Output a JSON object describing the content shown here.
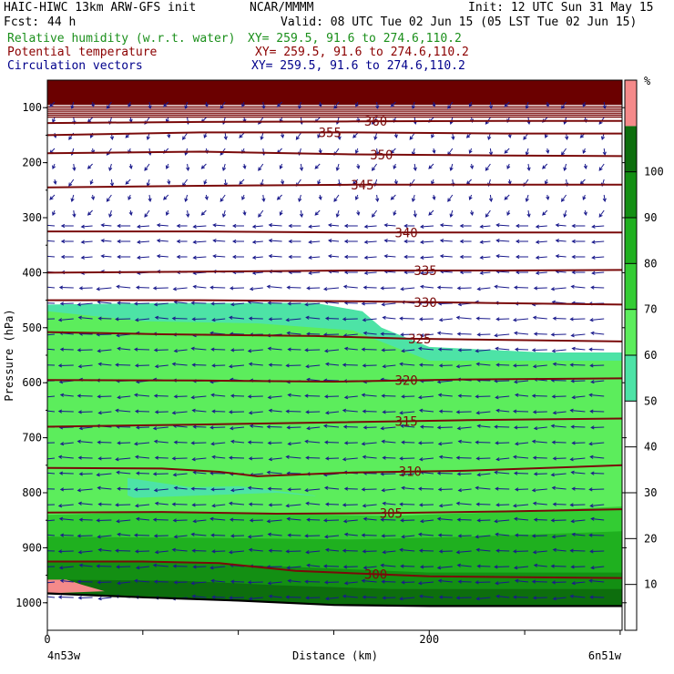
{
  "header": {
    "model": "HAIC-HIWC 13km ARW-GFS init",
    "org": "NCAR/MMMM",
    "init": "Init: 12 UTC Sun 31 May 15",
    "fcst_label": "Fcst:",
    "fcst_value": "44 h",
    "valid": "Valid: 08 UTC Tue 02 Jun 15 (05 LST Tue 02 Jun 15)",
    "fields": [
      {
        "label": "Relative humidity (w.r.t. water)",
        "xy": "XY= 259.5, 91.6 to 274.6,110.2"
      },
      {
        "label": "Potential temperature",
        "xy": "XY= 259.5, 91.6 to 274.6,110.2"
      },
      {
        "label": "Circulation vectors",
        "xy": "XY= 259.5, 91.6 to 274.6,110.2"
      }
    ]
  },
  "colors": {
    "rh_text": "#1a8f1a",
    "theta_text": "#8b0000",
    "vector_text": "#00008b",
    "theta_line": "#7a0a0a",
    "vector": "#1a1a8c",
    "rh_50": "#4de3a6",
    "rh_60": "#5ced5c",
    "rh_70": "#33cc33",
    "rh_80": "#1fb01f",
    "rh_90": "#138f13",
    "rh_100": "#0d6e0d",
    "rh_top": "#f58a8a",
    "stratos": "#6b0000"
  },
  "chart_data": {
    "type": "heatmap",
    "xlabel": "Distance (km)",
    "ylabel": "Pressure (hPa)",
    "x_ticks": [
      0,
      200
    ],
    "xlim": [
      0,
      301
    ],
    "y_ticks": [
      100,
      200,
      300,
      400,
      500,
      600,
      700,
      800,
      900,
      1000
    ],
    "ylim": [
      1050,
      50
    ],
    "x_end_labels": {
      "left": "4n53w",
      "right": "6n51w"
    },
    "colorbar": {
      "unit": "%",
      "ticks": [
        10,
        20,
        30,
        40,
        50,
        60,
        70,
        80,
        90,
        100
      ],
      "levels": [
        {
          "from": 50,
          "to": 60,
          "color": "#4de3a6"
        },
        {
          "from": 60,
          "to": 70,
          "color": "#5ced5c"
        },
        {
          "from": 70,
          "to": 80,
          "color": "#33cc33"
        },
        {
          "from": 80,
          "to": 90,
          "color": "#1fb01f"
        },
        {
          "from": 90,
          "to": 100,
          "color": "#138f13"
        },
        {
          "from": 100,
          "to": 110,
          "color": "#0d6e0d"
        },
        {
          "from": 110,
          "to": 120,
          "color": "#f58a8a"
        }
      ]
    },
    "rh_regions": [
      {
        "level": 50,
        "color": "#4de3a6",
        "pts": [
          [
            0,
            458
          ],
          [
            60,
            455
          ],
          [
            140,
            455
          ],
          [
            165,
            470
          ],
          [
            175,
            500
          ],
          [
            200,
            535
          ],
          [
            260,
            545
          ],
          [
            301,
            545
          ],
          [
            301,
            1005
          ],
          [
            0,
            1005
          ]
        ]
      },
      {
        "level": 60,
        "color": "#5ced5c",
        "pts": [
          [
            0,
            470
          ],
          [
            50,
            488
          ],
          [
            110,
            492
          ],
          [
            160,
            505
          ],
          [
            200,
            560
          ],
          [
            301,
            560
          ],
          [
            301,
            1005
          ],
          [
            0,
            1005
          ]
        ]
      },
      {
        "level": 50,
        "color": "#4de3a6",
        "pts": [
          [
            42,
            773
          ],
          [
            75,
            790
          ],
          [
            100,
            788
          ],
          [
            140,
            805
          ],
          [
            150,
            830
          ],
          [
            120,
            835
          ],
          [
            60,
            828
          ],
          [
            42,
            805
          ]
        ]
      },
      {
        "level": 60,
        "color": "#5ced5c",
        "pts": [
          [
            0,
            812
          ],
          [
            40,
            810
          ],
          [
            80,
            805
          ],
          [
            120,
            800
          ],
          [
            160,
            812
          ],
          [
            200,
            815
          ],
          [
            250,
            800
          ],
          [
            301,
            780
          ],
          [
            301,
            1005
          ],
          [
            0,
            1005
          ]
        ]
      },
      {
        "level": 70,
        "color": "#33cc33",
        "pts": [
          [
            0,
            840
          ],
          [
            60,
            835
          ],
          [
            120,
            838
          ],
          [
            180,
            842
          ],
          [
            240,
            835
          ],
          [
            301,
            825
          ],
          [
            301,
            1005
          ],
          [
            0,
            1005
          ]
        ]
      },
      {
        "level": 80,
        "color": "#1fb01f",
        "pts": [
          [
            0,
            880
          ],
          [
            80,
            882
          ],
          [
            160,
            885
          ],
          [
            220,
            880
          ],
          [
            301,
            870
          ],
          [
            301,
            1005
          ],
          [
            0,
            1005
          ]
        ]
      },
      {
        "level": 90,
        "color": "#138f13",
        "pts": [
          [
            0,
            925
          ],
          [
            70,
            927
          ],
          [
            130,
            935
          ],
          [
            200,
            945
          ],
          [
            301,
            945
          ],
          [
            301,
            1005
          ],
          [
            0,
            1005
          ]
        ]
      },
      {
        "level": 100,
        "color": "#0d6e0d",
        "pts": [
          [
            0,
            958
          ],
          [
            70,
            960
          ],
          [
            120,
            968
          ],
          [
            180,
            975
          ],
          [
            301,
            975
          ],
          [
            301,
            1005
          ],
          [
            0,
            1005
          ]
        ]
      },
      {
        "level": 110,
        "color": "#f58a8a",
        "pts": [
          [
            0,
            958
          ],
          [
            10,
            958
          ],
          [
            18,
            967
          ],
          [
            30,
            979
          ],
          [
            0,
            983
          ]
        ]
      }
    ],
    "stratosphere_band": {
      "from_hPa": 50,
      "to_hPa": 95
    },
    "surface_line": [
      [
        0,
        983
      ],
      [
        50,
        990
      ],
      [
        100,
        996
      ],
      [
        150,
        1004
      ],
      [
        200,
        1006
      ],
      [
        301,
        1006
      ]
    ],
    "theta_contours": [
      {
        "value": 300,
        "label_x": 172,
        "points": [
          [
            0,
            925
          ],
          [
            50,
            925
          ],
          [
            90,
            928
          ],
          [
            130,
            942
          ],
          [
            200,
            952
          ],
          [
            301,
            955
          ]
        ]
      },
      {
        "value": 305,
        "label_x": 180,
        "points": [
          [
            0,
            836
          ],
          [
            60,
            835
          ],
          [
            120,
            838
          ],
          [
            180,
            837
          ],
          [
            240,
            834
          ],
          [
            301,
            830
          ]
        ]
      },
      {
        "value": 310,
        "label_x": 190,
        "points": [
          [
            0,
            755
          ],
          [
            60,
            756
          ],
          [
            90,
            762
          ],
          [
            110,
            770
          ],
          [
            160,
            763
          ],
          [
            220,
            760
          ],
          [
            301,
            750
          ]
        ]
      },
      {
        "value": 315,
        "label_x": 188,
        "points": [
          [
            0,
            680
          ],
          [
            80,
            676
          ],
          [
            150,
            672
          ],
          [
            220,
            668
          ],
          [
            301,
            665
          ]
        ]
      },
      {
        "value": 320,
        "label_x": 188,
        "points": [
          [
            0,
            595
          ],
          [
            80,
            596
          ],
          [
            150,
            598
          ],
          [
            220,
            594
          ],
          [
            301,
            592
          ]
        ]
      },
      {
        "value": 325,
        "label_x": 195,
        "points": [
          [
            0,
            508
          ],
          [
            60,
            512
          ],
          [
            140,
            515
          ],
          [
            190,
            520
          ],
          [
            260,
            523
          ],
          [
            301,
            525
          ]
        ]
      },
      {
        "value": 330,
        "label_x": 198,
        "points": [
          [
            0,
            450
          ],
          [
            80,
            450
          ],
          [
            160,
            452
          ],
          [
            230,
            455
          ],
          [
            301,
            458
          ]
        ]
      },
      {
        "value": 335,
        "label_x": 198,
        "points": [
          [
            0,
            400
          ],
          [
            80,
            398
          ],
          [
            160,
            396
          ],
          [
            240,
            396
          ],
          [
            301,
            395
          ]
        ]
      },
      {
        "value": 340,
        "label_x": 188,
        "points": [
          [
            0,
            325
          ],
          [
            80,
            325
          ],
          [
            160,
            327
          ],
          [
            240,
            327
          ],
          [
            301,
            327
          ]
        ]
      },
      {
        "value": 345,
        "label_x": 165,
        "points": [
          [
            0,
            245
          ],
          [
            80,
            242
          ],
          [
            160,
            240
          ],
          [
            240,
            240
          ],
          [
            301,
            240
          ]
        ]
      },
      {
        "value": 350,
        "label_x": 175,
        "points": [
          [
            0,
            183
          ],
          [
            80,
            180
          ],
          [
            160,
            185
          ],
          [
            240,
            187
          ],
          [
            301,
            188
          ]
        ]
      },
      {
        "value": 355,
        "label_x": 148,
        "points": [
          [
            0,
            150
          ],
          [
            80,
            145
          ],
          [
            160,
            145
          ],
          [
            240,
            147
          ],
          [
            301,
            147
          ]
        ]
      },
      {
        "value": 360,
        "label_x": 172,
        "points": [
          [
            0,
            128
          ],
          [
            80,
            126
          ],
          [
            160,
            125
          ],
          [
            240,
            124
          ],
          [
            301,
            124
          ]
        ]
      }
    ]
  }
}
